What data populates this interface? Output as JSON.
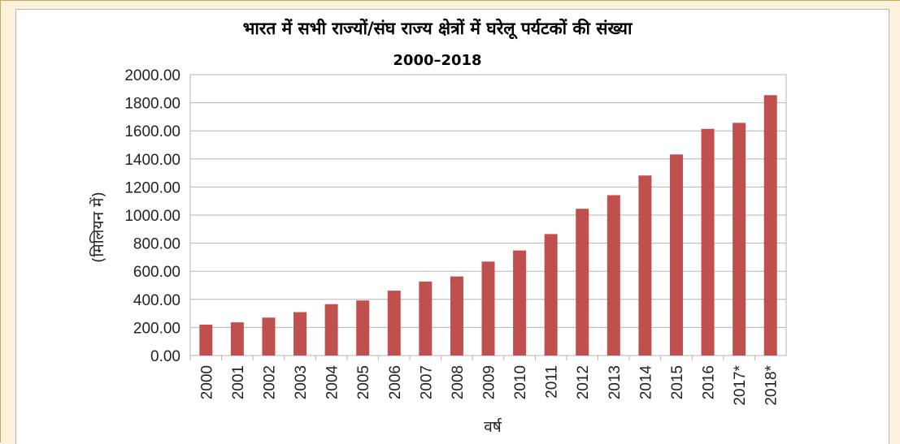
{
  "chart_data": {
    "type": "bar",
    "title": "भारत में सभी राज्यों/संघ राज्य क्षेत्रों में घरेलू पर्यटकों की संख्या",
    "subtitle": "2000–2018",
    "xlabel": "वर्ष",
    "ylabel": "(मिलियन में)",
    "ylim": [
      0,
      2000
    ],
    "yticks": [
      "0.00",
      "200.00",
      "400.00",
      "600.00",
      "800.00",
      "1000.00",
      "1200.00",
      "1400.00",
      "1600.00",
      "1800.00",
      "2000.00"
    ],
    "grid": true,
    "legend": "none",
    "bar_color": "#c0504d",
    "categories": [
      "2000",
      "2001",
      "2002",
      "2003",
      "2004",
      "2005",
      "2006",
      "2007",
      "2008",
      "2009",
      "2010",
      "2011",
      "2012",
      "2013",
      "2014",
      "2015",
      "2016",
      "2017*",
      "2018*"
    ],
    "values": [
      220,
      236,
      270,
      309,
      366,
      392,
      462,
      527,
      563,
      669,
      748,
      865,
      1045,
      1142,
      1282,
      1432,
      1614,
      1657,
      1854
    ]
  }
}
